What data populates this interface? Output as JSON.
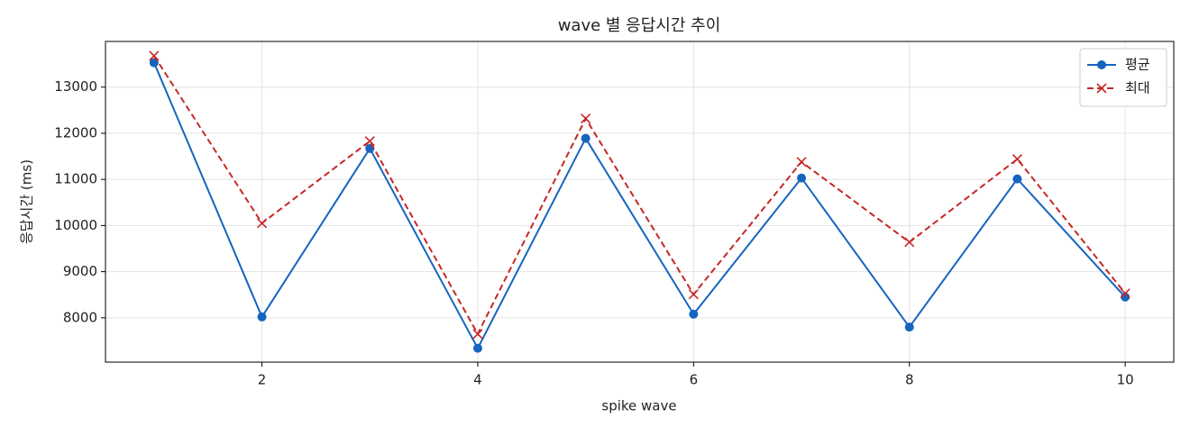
{
  "chart_data": {
    "type": "line",
    "title": "wave 별 응답시간 추이",
    "x_label": "spike wave",
    "y_label": "응답시간 (ms)",
    "x": [
      1,
      2,
      3,
      4,
      5,
      6,
      7,
      8,
      9,
      10
    ],
    "series": [
      {
        "name": "평균",
        "color": "#1565c0",
        "marker": "o",
        "linestyle": "solid",
        "values": [
          13530,
          8020,
          11670,
          7340,
          11890,
          8080,
          11030,
          7800,
          11010,
          8450
        ]
      },
      {
        "name": "최대",
        "color": "#c62828",
        "marker": "x",
        "linestyle": "dashed",
        "values": [
          13680,
          10050,
          11830,
          7650,
          12320,
          8510,
          11380,
          9640,
          11440,
          8530
        ]
      }
    ],
    "xlim": [
      0.55,
      10.45
    ],
    "ylim": [
      7040,
      13990
    ],
    "xticks": [
      2,
      4,
      6,
      8,
      10
    ],
    "yticks": [
      8000,
      9000,
      10000,
      11000,
      12000,
      13000
    ],
    "grid": true,
    "legend": "upper right"
  }
}
